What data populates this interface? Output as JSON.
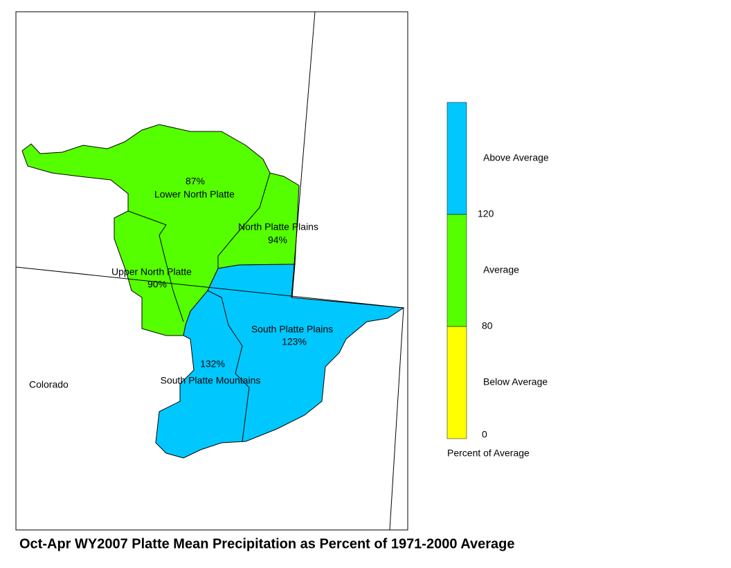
{
  "title": "Oct-Apr WY2007 Platte Mean Precipitation as Percent of 1971-2000 Average",
  "state_label": "Colorado",
  "regions": [
    {
      "name": "Lower North Platte",
      "label": "87%"
    },
    {
      "name": "North Platte Plains",
      "label": "94%"
    },
    {
      "name": "Upper North Platte",
      "label": "90%"
    },
    {
      "name": "South Platte Plains",
      "label": "123%"
    },
    {
      "name": "South Platte Mountains",
      "label": "132%"
    }
  ],
  "legend": {
    "title": "Percent of Average",
    "classes": [
      {
        "label": "Above Average",
        "color": "#00c8ff"
      },
      {
        "label": "Average",
        "color": "#55ff00"
      },
      {
        "label": "Below Average",
        "color": "#ffff00"
      }
    ],
    "breaks": [
      120,
      80,
      0
    ]
  }
}
